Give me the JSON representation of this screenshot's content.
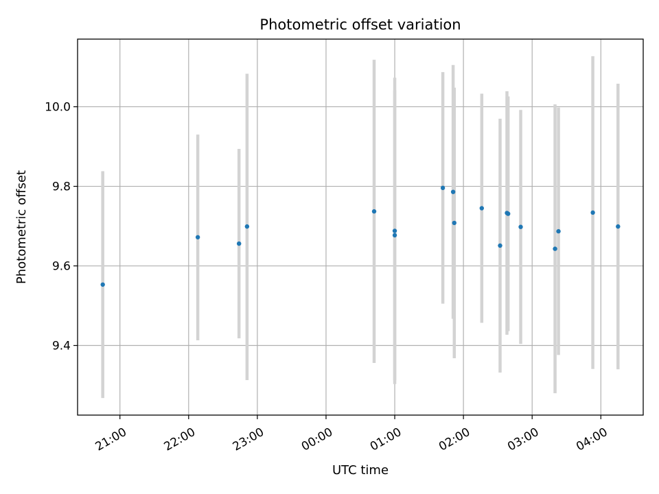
{
  "chart_data": {
    "type": "scatter",
    "title": "Photometric offset variation",
    "xlabel": "UTC time",
    "ylabel": "Photometric offset",
    "x_unit": "UTC hour-of-night (times after midnight continue past 24:00)",
    "xlim": [
      "20:23",
      "04:37"
    ],
    "ylim": [
      9.225,
      10.17
    ],
    "x_ticks": [
      "21:00",
      "22:00",
      "23:00",
      "00:00",
      "01:00",
      "02:00",
      "03:00",
      "04:00"
    ],
    "y_ticks": [
      9.4,
      9.6,
      9.8,
      10.0
    ],
    "y_tick_labels": [
      "9.4",
      "9.6",
      "9.8",
      "10.0"
    ],
    "grid": true,
    "colors": {
      "marker": "#1f77b4",
      "errorbar": "#d3d3d3",
      "grid": "#b0b0b0"
    },
    "points": [
      {
        "time": "20:45",
        "y": 9.553,
        "err_low": 9.268,
        "err_high": 9.838
      },
      {
        "time": "22:08",
        "y": 9.672,
        "err_low": 9.413,
        "err_high": 9.93
      },
      {
        "time": "22:44",
        "y": 9.656,
        "err_low": 9.418,
        "err_high": 9.894
      },
      {
        "time": "22:51",
        "y": 9.699,
        "err_low": 9.313,
        "err_high": 10.083
      },
      {
        "time": "00:42",
        "y": 9.737,
        "err_low": 9.356,
        "err_high": 10.118
      },
      {
        "time": "01:00",
        "y": 9.688,
        "err_low": 9.303,
        "err_high": 10.073
      },
      {
        "time": "01:00",
        "y": 9.677,
        "err_low": 9.313,
        "err_high": 10.041
      },
      {
        "time": "01:42",
        "y": 9.796,
        "err_low": 9.505,
        "err_high": 10.087
      },
      {
        "time": "01:51",
        "y": 9.786,
        "err_low": 9.467,
        "err_high": 10.105
      },
      {
        "time": "01:52",
        "y": 9.708,
        "err_low": 9.368,
        "err_high": 10.048
      },
      {
        "time": "02:16",
        "y": 9.745,
        "err_low": 9.457,
        "err_high": 10.033
      },
      {
        "time": "02:32",
        "y": 9.651,
        "err_low": 9.332,
        "err_high": 9.97
      },
      {
        "time": "02:38",
        "y": 9.733,
        "err_low": 9.427,
        "err_high": 10.039
      },
      {
        "time": "02:39",
        "y": 9.731,
        "err_low": 9.436,
        "err_high": 10.026
      },
      {
        "time": "02:50",
        "y": 9.698,
        "err_low": 9.404,
        "err_high": 9.992
      },
      {
        "time": "03:20",
        "y": 9.643,
        "err_low": 9.28,
        "err_high": 10.006
      },
      {
        "time": "03:23",
        "y": 9.687,
        "err_low": 9.376,
        "err_high": 9.998
      },
      {
        "time": "03:53",
        "y": 9.734,
        "err_low": 9.341,
        "err_high": 10.127
      },
      {
        "time": "04:15",
        "y": 9.699,
        "err_low": 9.34,
        "err_high": 10.058
      }
    ]
  }
}
